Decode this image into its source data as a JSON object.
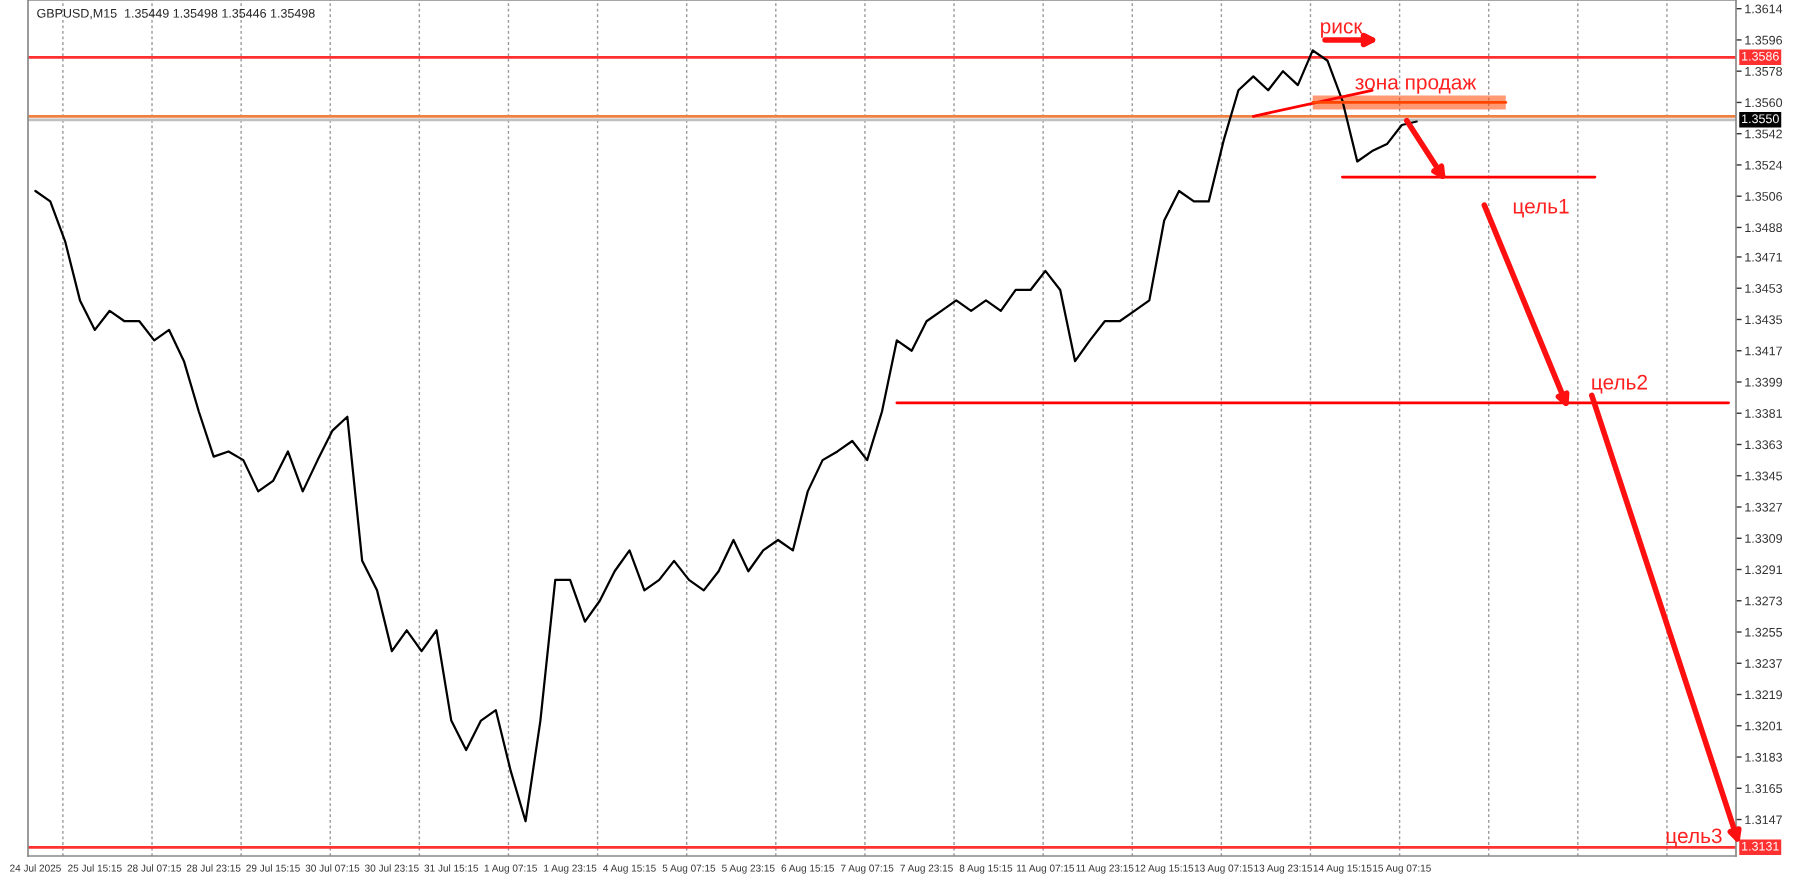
{
  "chart_data": {
    "type": "line",
    "title": "GBPUSD,M15  1.35449 1.35498 1.35446 1.35498",
    "categories": [
      "24 Jul 2025",
      null,
      null,
      null,
      "25 Jul 15:15",
      null,
      null,
      null,
      "28 Jul 07:15",
      null,
      null,
      null,
      "28 Jul 23:15",
      null,
      null,
      null,
      "29 Jul 15:15",
      null,
      null,
      null,
      "30 Jul 07:15",
      null,
      null,
      null,
      "30 Jul 23:15",
      null,
      null,
      null,
      "31 Jul 15:15",
      null,
      null,
      null,
      "1 Aug 07:15",
      null,
      null,
      null,
      "1 Aug 23:15",
      null,
      null,
      null,
      "4 Aug 15:15",
      null,
      null,
      null,
      "5 Aug 07:15",
      null,
      null,
      null,
      "5 Aug 23:15",
      null,
      null,
      null,
      "6 Aug 15:15",
      null,
      null,
      null,
      "7 Aug 07:15",
      null,
      null,
      null,
      "7 Aug 23:15",
      null,
      null,
      null,
      "8 Aug 15:15",
      null,
      null,
      null,
      "11 Aug 07:15",
      null,
      null,
      null,
      "11 Aug 23:15",
      null,
      null,
      null,
      "12 Aug 15:15",
      null,
      null,
      null,
      "13 Aug 07:15",
      null,
      null,
      null,
      "13 Aug 23:15",
      null,
      null,
      null,
      "14 Aug 15:15",
      null,
      null,
      null,
      "15 Aug 07:15",
      null,
      null,
      null,
      null,
      null,
      null,
      null,
      null,
      null,
      null,
      null,
      null,
      null,
      null,
      null,
      null,
      null,
      null,
      null,
      null,
      null,
      null
    ],
    "series": [
      {
        "color": "#000000",
        "values": [
          1.3509,
          1.3503,
          1.348,
          1.3446,
          1.3429,
          1.344,
          1.3434,
          1.3434,
          1.3423,
          1.3429,
          1.3411,
          1.3382,
          1.3356,
          1.3359,
          1.3354,
          1.3336,
          1.3342,
          1.3359,
          1.3336,
          1.3354,
          1.3371,
          1.3379,
          1.3296,
          1.3279,
          1.3244,
          1.3256,
          1.3244,
          1.3256,
          1.3204,
          1.3187,
          1.3204,
          1.321,
          1.3175,
          1.3146,
          1.3204,
          1.3285,
          1.3285,
          1.3261,
          1.3273,
          1.329,
          1.3302,
          1.3279,
          1.3285,
          1.3296,
          1.3285,
          1.3279,
          1.329,
          1.3308,
          1.329,
          1.3302,
          1.3308,
          1.3302,
          1.3336,
          1.3354,
          1.3359,
          1.3365,
          1.3354,
          1.3382,
          1.3423,
          1.3417,
          1.3434,
          1.344,
          1.3446,
          1.344,
          1.3446,
          1.344,
          1.3452,
          1.3452,
          1.3463,
          1.3452,
          1.3411,
          1.3423,
          1.3434,
          1.3434,
          1.344,
          1.3446,
          1.3492,
          1.3509,
          1.3503,
          1.3503,
          1.3538,
          1.3567,
          1.3575,
          1.3567,
          1.3578,
          1.357,
          1.359,
          1.3584,
          1.3561,
          1.3526,
          1.3532,
          1.3536,
          1.3547,
          1.3549,
          null,
          null,
          null,
          null,
          null,
          null,
          null,
          null,
          null,
          null,
          null,
          null,
          null,
          null,
          null,
          null,
          null,
          null,
          null,
          null,
          null
        ]
      },
      {
        "color": "#ff0000",
        "values": [
          null,
          null,
          null,
          null,
          null,
          null,
          null,
          null,
          null,
          null,
          null,
          null,
          null,
          null,
          null,
          null,
          null,
          null,
          null,
          null,
          null,
          null,
          null,
          null,
          null,
          null,
          null,
          null,
          null,
          null,
          null,
          null,
          null,
          null,
          null,
          null,
          null,
          null,
          null,
          null,
          null,
          null,
          null,
          null,
          null,
          null,
          null,
          null,
          null,
          null,
          null,
          null,
          null,
          null,
          null,
          null,
          null,
          null,
          null,
          null,
          null,
          null,
          null,
          null,
          null,
          null,
          null,
          null,
          null,
          null,
          null,
          null,
          null,
          null,
          null,
          null,
          null,
          null,
          null,
          null,
          null,
          null,
          null,
          null,
          null,
          null,
          null,
          null,
          1.3517,
          null,
          null,
          null,
          null,
          null,
          null,
          null,
          null,
          null,
          null,
          null,
          null,
          null,
          null,
          null,
          null,
          1.3517,
          null,
          null,
          null,
          null,
          null,
          null,
          null,
          null,
          null
        ]
      },
      {
        "color": "#ff0000",
        "values": [
          null,
          null,
          null,
          null,
          null,
          null,
          null,
          null,
          null,
          null,
          null,
          null,
          null,
          null,
          null,
          null,
          null,
          null,
          null,
          null,
          null,
          null,
          null,
          null,
          null,
          null,
          null,
          null,
          null,
          null,
          null,
          null,
          null,
          null,
          null,
          null,
          null,
          null,
          null,
          null,
          null,
          null,
          null,
          null,
          null,
          null,
          null,
          null,
          null,
          null,
          null,
          null,
          null,
          null,
          null,
          null,
          null,
          null,
          1.3387,
          null,
          null,
          null,
          null,
          null,
          null,
          null,
          null,
          null,
          null,
          null,
          null,
          null,
          null,
          null,
          null,
          null,
          null,
          null,
          null,
          null,
          null,
          null,
          null,
          null,
          null,
          null,
          null,
          null,
          null,
          null,
          null,
          null,
          null,
          null,
          null,
          null,
          null,
          null,
          null,
          null,
          null,
          null,
          null,
          null,
          null,
          null,
          null,
          null,
          null,
          null,
          null,
          null,
          null,
          null,
          1.3387
        ]
      },
      {
        "color": "#ff0000",
        "values": [
          null,
          null,
          null,
          null,
          null,
          null,
          null,
          null,
          null,
          null,
          null,
          null,
          null,
          null,
          null,
          null,
          null,
          null,
          null,
          null,
          null,
          null,
          null,
          null,
          null,
          null,
          null,
          null,
          null,
          null,
          null,
          null,
          null,
          null,
          null,
          null,
          null,
          null,
          null,
          null,
          null,
          null,
          null,
          null,
          null,
          null,
          null,
          null,
          null,
          null,
          null,
          null,
          null,
          null,
          null,
          null,
          null,
          null,
          null,
          null,
          null,
          null,
          null,
          null,
          null,
          null,
          null,
          null,
          null,
          null,
          null,
          null,
          null,
          null,
          null,
          null,
          null,
          null,
          null,
          null,
          null,
          null,
          1.3552,
          null,
          null,
          null,
          null,
          null,
          null,
          null,
          1.3567,
          null,
          null,
          null,
          null,
          null,
          null,
          null,
          null,
          null,
          null,
          null,
          null,
          null,
          null,
          null,
          null,
          null,
          null,
          null,
          null,
          null,
          null,
          null,
          null
        ]
      },
      {
        "color": "#ff4500",
        "values": [
          null,
          null,
          null,
          null,
          null,
          null,
          null,
          null,
          null,
          null,
          null,
          null,
          null,
          null,
          null,
          null,
          null,
          null,
          null,
          null,
          null,
          null,
          null,
          null,
          null,
          null,
          null,
          null,
          null,
          null,
          null,
          null,
          null,
          null,
          null,
          null,
          null,
          null,
          null,
          null,
          null,
          null,
          null,
          null,
          null,
          null,
          null,
          null,
          null,
          null,
          null,
          null,
          null,
          null,
          null,
          null,
          null,
          null,
          null,
          null,
          null,
          null,
          null,
          null,
          null,
          null,
          null,
          null,
          null,
          null,
          null,
          null,
          null,
          null,
          null,
          null,
          null,
          null,
          null,
          null,
          null,
          null,
          null,
          null,
          null,
          null,
          1.356,
          null,
          null,
          null,
          null,
          null,
          null,
          null,
          null,
          null,
          null,
          null,
          null,
          1.356,
          null,
          null,
          null,
          null,
          null,
          null,
          null,
          null,
          null,
          null,
          null,
          null,
          null,
          null,
          null
        ],
        "lower": [
          null,
          null,
          null,
          null,
          null,
          null,
          null,
          null,
          null,
          null,
          null,
          null,
          null,
          null,
          null,
          null,
          null,
          null,
          null,
          null,
          null,
          null,
          null,
          null,
          null,
          null,
          null,
          null,
          null,
          null,
          null,
          null,
          null,
          null,
          null,
          null,
          null,
          null,
          null,
          null,
          null,
          null,
          null,
          null,
          null,
          null,
          null,
          null,
          null,
          null,
          null,
          null,
          null,
          null,
          null,
          null,
          null,
          null,
          null,
          null,
          null,
          null,
          null,
          null,
          null,
          null,
          null,
          null,
          null,
          null,
          null,
          null,
          null,
          null,
          null,
          null,
          null,
          null,
          null,
          null,
          null,
          null,
          null,
          null,
          null,
          null,
          1.3556,
          null,
          null,
          null,
          null,
          null,
          null,
          null,
          null,
          null,
          null,
          null,
          null,
          1.3556,
          null,
          null,
          null,
          null,
          null,
          null,
          null,
          null,
          null,
          null,
          null,
          null,
          null,
          null,
          null
        ],
        "upper": [
          null,
          null,
          null,
          null,
          null,
          null,
          null,
          null,
          null,
          null,
          null,
          null,
          null,
          null,
          null,
          null,
          null,
          null,
          null,
          null,
          null,
          null,
          null,
          null,
          null,
          null,
          null,
          null,
          null,
          null,
          null,
          null,
          null,
          null,
          null,
          null,
          null,
          null,
          null,
          null,
          null,
          null,
          null,
          null,
          null,
          null,
          null,
          null,
          null,
          null,
          null,
          null,
          null,
          null,
          null,
          null,
          null,
          null,
          null,
          null,
          null,
          null,
          null,
          null,
          null,
          null,
          null,
          null,
          null,
          null,
          null,
          null,
          null,
          null,
          null,
          null,
          null,
          null,
          null,
          null,
          null,
          null,
          null,
          null,
          null,
          null,
          1.3564,
          null,
          null,
          null,
          null,
          null,
          null,
          null,
          null,
          null,
          null,
          null,
          null,
          1.3564,
          null,
          null,
          null,
          null,
          null,
          null,
          null,
          null,
          null,
          null,
          null,
          null,
          null,
          null,
          null
        ]
      }
    ],
    "annotations": [
      "риск",
      "зона продаж",
      "цель1",
      "цель2",
      {
        "text": "цель3",
        "y": 1.3131
      }
    ],
    "ref_lines": [
      {
        "axis": "y",
        "value": 1.3586,
        "label": "1.3586",
        "color": "#ff3030"
      },
      {
        "axis": "y",
        "value": 1.3552,
        "color": "#f08040"
      },
      {
        "axis": "y",
        "value": 1.355,
        "label": "1.3550",
        "color": "#c0c0c0"
      },
      {
        "axis": "y",
        "value": 1.3131,
        "label": "1.3131",
        "color": "#ff3030"
      }
    ],
    "ylim": [
      1.3126,
      1.3619
    ],
    "yticks": [
      {
        "value": 1.3614,
        "label": "1.3614"
      },
      {
        "value": 1.3596,
        "label": "1.3596"
      },
      {
        "value": 1.3578,
        "label": "1.3578"
      },
      {
        "value": 1.356,
        "label": "1.3560"
      },
      {
        "value": 1.3542,
        "label": "1.3542"
      },
      {
        "value": 1.3524,
        "label": "1.3524"
      },
      {
        "value": 1.3506,
        "label": "1.3506"
      },
      {
        "value": 1.3488,
        "label": "1.3488"
      },
      {
        "value": 1.3471,
        "label": "1.3471"
      },
      {
        "value": 1.3453,
        "label": "1.3453"
      },
      {
        "value": 1.3435,
        "label": "1.3435"
      },
      {
        "value": 1.3417,
        "label": "1.3417"
      },
      {
        "value": 1.3399,
        "label": "1.3399"
      },
      {
        "value": 1.3381,
        "label": "1.3381"
      },
      {
        "value": 1.3363,
        "label": "1.3363"
      },
      {
        "value": 1.3345,
        "label": "1.3345"
      },
      {
        "value": 1.3327,
        "label": "1.3327"
      },
      {
        "value": 1.3309,
        "label": "1.3309"
      },
      {
        "value": 1.3291,
        "label": "1.3291"
      },
      {
        "value": 1.3273,
        "label": "1.3273"
      },
      {
        "value": 1.3255,
        "label": "1.3255"
      },
      {
        "value": 1.3237,
        "label": "1.3237"
      },
      {
        "value": 1.3219,
        "label": "1.3219"
      },
      {
        "value": 1.3201,
        "label": "1.3201"
      },
      {
        "value": 1.3183,
        "label": "1.3183"
      },
      {
        "value": 1.3165,
        "label": "1.3165"
      },
      {
        "value": 1.3147,
        "label": "1.3147"
      }
    ],
    "grid": "x"
  }
}
